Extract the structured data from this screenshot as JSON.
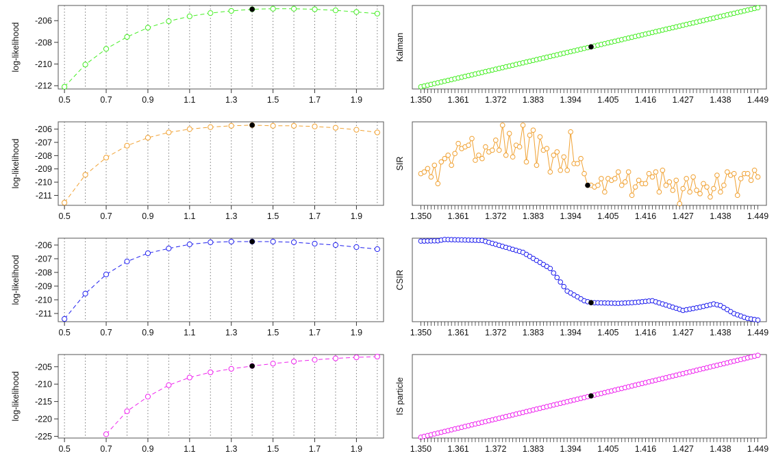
{
  "figure": {
    "colors": {
      "kalman": "#44ee22",
      "sir": "#f0a030",
      "csir": "#1c1cee",
      "is": "#ee22ee",
      "highlight": "#000000",
      "box": "#555555",
      "grid": "#777777"
    },
    "grid": "dotted vertical lines at x ticks in left panels"
  },
  "chart_data": [
    {
      "type": "line",
      "panel": "left-1",
      "series_name": "",
      "color_key": "kalman",
      "ylabel": "log-likelihood",
      "x": [
        0.5,
        0.6,
        0.7,
        0.8,
        0.9,
        1.0,
        1.1,
        1.2,
        1.3,
        1.4,
        1.5,
        1.6,
        1.7,
        1.8,
        1.9,
        2.0
      ],
      "y": [
        -212.1,
        -210.05,
        -208.6,
        -207.5,
        -206.65,
        -206.05,
        -205.6,
        -205.3,
        -205.1,
        -204.95,
        -204.9,
        -204.9,
        -204.95,
        -205.05,
        -205.2,
        -205.35
      ],
      "highlight": {
        "x": 1.4,
        "y": -204.95
      },
      "xlim": [
        0.47,
        2.03
      ],
      "ylim": [
        -212.3,
        -204.6
      ],
      "yticks": [
        -212,
        -210,
        -208,
        -206
      ],
      "xticks": [
        0.5,
        0.7,
        0.9,
        1.1,
        1.3,
        1.5,
        1.7,
        1.9
      ],
      "xtick_labels": [
        "0.5",
        "0.7",
        "0.9",
        "1.1",
        "1.3",
        "1.5",
        "1.7",
        "1.9"
      ],
      "ytick_labels": [
        "-212",
        "-210",
        "-208",
        "-206"
      ]
    },
    {
      "type": "line",
      "panel": "right-1",
      "series_name": "Kalman",
      "color_key": "kalman",
      "ylabel": "Kalman",
      "gen": "linear",
      "x_start": 1.35,
      "x_end": 1.449,
      "n": 100,
      "y_start": -212.1,
      "y_end": -204.9,
      "highlight_index": 50,
      "xlim": [
        1.3475,
        1.4515
      ],
      "ylim": [
        -212.3,
        -204.7
      ],
      "xticks": [
        1.35,
        1.361,
        1.372,
        1.383,
        1.394,
        1.405,
        1.416,
        1.427,
        1.438,
        1.449
      ],
      "xtick_labels": [
        "1.350",
        "1.361",
        "1.372",
        "1.383",
        "1.394",
        "1.405",
        "1.416",
        "1.427",
        "1.438",
        "1.449"
      ]
    },
    {
      "type": "line",
      "panel": "left-2",
      "series_name": "",
      "color_key": "sir",
      "ylabel": "log-likelihood",
      "x": [
        0.5,
        0.6,
        0.7,
        0.8,
        0.9,
        1.0,
        1.1,
        1.2,
        1.3,
        1.4,
        1.5,
        1.6,
        1.7,
        1.8,
        1.9,
        2.0
      ],
      "y": [
        -211.55,
        -209.45,
        -208.15,
        -207.25,
        -206.65,
        -206.25,
        -206.0,
        -205.85,
        -205.75,
        -205.7,
        -205.75,
        -205.75,
        -205.8,
        -205.9,
        -206.05,
        -206.25
      ],
      "highlight": {
        "x": 1.4,
        "y": -205.7
      },
      "xlim": [
        0.47,
        2.03
      ],
      "ylim": [
        -211.75,
        -205.45
      ],
      "yticks": [
        -211,
        -210,
        -209,
        -208,
        -207,
        -206
      ],
      "xticks": [
        0.5,
        0.7,
        0.9,
        1.1,
        1.3,
        1.5,
        1.7,
        1.9
      ],
      "xtick_labels": [
        "0.5",
        "0.7",
        "0.9",
        "1.1",
        "1.3",
        "1.5",
        "1.7",
        "1.9"
      ],
      "ytick_labels": [
        "-211",
        "-210",
        "-209",
        "-208",
        "-207",
        "-206"
      ]
    },
    {
      "type": "line",
      "panel": "right-2",
      "series_name": "SIR",
      "color_key": "sir",
      "ylabel": "SIR",
      "gen": "values",
      "x_start": 1.35,
      "x_end": 1.449,
      "n": 100,
      "y": [
        31,
        30,
        28,
        33,
        26,
        37,
        24,
        22,
        20,
        26,
        19,
        13,
        16,
        15,
        14,
        10,
        23,
        20,
        22,
        15,
        18,
        17,
        11,
        17,
        2,
        20,
        7,
        21,
        14,
        15,
        2,
        24,
        8,
        5,
        26,
        9,
        17,
        16,
        30,
        20,
        18,
        29,
        21,
        29,
        6,
        25,
        25,
        22,
        31,
        38,
        38,
        39,
        38,
        34,
        42,
        34,
        35,
        34,
        30,
        38,
        36,
        30,
        44,
        39,
        35,
        37,
        37,
        31,
        33,
        30,
        42,
        29,
        38,
        36,
        41,
        35,
        49,
        40,
        34,
        42,
        33,
        41,
        43,
        37,
        39,
        45,
        40,
        32,
        42,
        38,
        30,
        32,
        31,
        44,
        34,
        31,
        31,
        35,
        29,
        33
      ],
      "highlight_index": 49,
      "xlim": [
        1.3475,
        1.4515
      ],
      "ylim": [
        0,
        50
      ],
      "invert_y": true,
      "xticks": [
        1.35,
        1.361,
        1.372,
        1.383,
        1.394,
        1.405,
        1.416,
        1.427,
        1.438,
        1.449
      ],
      "xtick_labels": [
        "1.350",
        "1.361",
        "1.372",
        "1.383",
        "1.394",
        "1.405",
        "1.416",
        "1.427",
        "1.438",
        "1.449"
      ]
    },
    {
      "type": "line",
      "panel": "left-3",
      "series_name": "",
      "color_key": "csir",
      "ylabel": "log-likelihood",
      "x": [
        0.5,
        0.6,
        0.7,
        0.8,
        0.9,
        1.0,
        1.1,
        1.2,
        1.3,
        1.4,
        1.5,
        1.6,
        1.7,
        1.8,
        1.9,
        2.0
      ],
      "y": [
        -211.4,
        -209.55,
        -208.15,
        -207.2,
        -206.6,
        -206.25,
        -205.95,
        -205.8,
        -205.75,
        -205.75,
        -205.75,
        -205.8,
        -205.9,
        -206.0,
        -206.15,
        -206.3
      ],
      "highlight": {
        "x": 1.4,
        "y": -205.75
      },
      "xlim": [
        0.47,
        2.03
      ],
      "ylim": [
        -211.6,
        -205.5
      ],
      "yticks": [
        -211,
        -210,
        -209,
        -208,
        -207,
        -206
      ],
      "xticks": [
        0.5,
        0.7,
        0.9,
        1.1,
        1.3,
        1.5,
        1.7,
        1.9
      ],
      "xtick_labels": [
        "0.5",
        "0.7",
        "0.9",
        "1.1",
        "1.3",
        "1.5",
        "1.7",
        "1.9"
      ],
      "ytick_labels": [
        "-211",
        "-210",
        "-209",
        "-208",
        "-207",
        "-206"
      ]
    },
    {
      "type": "line",
      "panel": "right-3",
      "series_name": "CSIR",
      "color_key": "csir",
      "ylabel": "CSIR",
      "gen": "interp",
      "x_start": 1.35,
      "x_end": 1.449,
      "n": 100,
      "knots": [
        [
          0,
          0.5
        ],
        [
          5,
          0.4
        ],
        [
          7,
          0.0
        ],
        [
          10,
          0.1
        ],
        [
          18,
          0.3
        ],
        [
          22,
          1.5
        ],
        [
          30,
          4.0
        ],
        [
          38,
          9.0
        ],
        [
          43,
          16.0
        ],
        [
          48,
          19.0
        ],
        [
          50,
          19.6
        ],
        [
          58,
          19.8
        ],
        [
          62,
          19.6
        ],
        [
          68,
          19.0
        ],
        [
          71,
          20.0
        ],
        [
          74,
          21.0
        ],
        [
          77,
          22.0
        ],
        [
          82,
          21.0
        ],
        [
          86,
          20.0
        ],
        [
          88,
          20.5
        ],
        [
          92,
          23.0
        ],
        [
          96,
          24.5
        ],
        [
          99,
          25.0
        ]
      ],
      "highlight_index": 50,
      "xlim": [
        1.3475,
        1.4515
      ],
      "ylim": [
        -0.4,
        25.5
      ],
      "invert_y": true,
      "xticks": [
        1.35,
        1.361,
        1.372,
        1.383,
        1.394,
        1.405,
        1.416,
        1.427,
        1.438,
        1.449
      ],
      "xtick_labels": [
        "1.350",
        "1.361",
        "1.372",
        "1.383",
        "1.394",
        "1.405",
        "1.416",
        "1.427",
        "1.438",
        "1.449"
      ]
    },
    {
      "type": "line",
      "panel": "left-4",
      "series_name": "",
      "color_key": "is",
      "ylabel": "log-likelihood",
      "x": [
        0.7,
        0.8,
        0.9,
        1.0,
        1.1,
        1.2,
        1.3,
        1.4,
        1.5,
        1.6,
        1.7,
        1.8,
        1.9,
        2.0
      ],
      "y": [
        -224.4,
        -217.8,
        -213.6,
        -210.3,
        -208.1,
        -206.6,
        -205.6,
        -204.8,
        -204.1,
        -203.5,
        -203.0,
        -202.6,
        -202.3,
        -202.1
      ],
      "highlight": {
        "x": 1.4,
        "y": -204.8
      },
      "xlim": [
        0.47,
        2.03
      ],
      "ylim": [
        -225.5,
        -201.5
      ],
      "yticks": [
        -225,
        -220,
        -215,
        -210,
        -205
      ],
      "xticks": [
        0.5,
        0.7,
        0.9,
        1.1,
        1.3,
        1.5,
        1.7,
        1.9
      ],
      "xtick_labels": [
        "0.5",
        "0.7",
        "0.9",
        "1.1",
        "1.3",
        "1.5",
        "1.7",
        "1.9"
      ],
      "ytick_labels": [
        "-225",
        "-220",
        "-215",
        "-210",
        "-205"
      ]
    },
    {
      "type": "line",
      "panel": "right-4",
      "series_name": "IS particle",
      "color_key": "is",
      "ylabel": "IS particle",
      "gen": "linear",
      "x_start": 1.35,
      "x_end": 1.449,
      "n": 100,
      "y_start": 0,
      "y_end": 100,
      "highlight_index": 50,
      "xlim": [
        1.3475,
        1.4515
      ],
      "ylim": [
        -1,
        101
      ],
      "xticks": [
        1.35,
        1.361,
        1.372,
        1.383,
        1.394,
        1.405,
        1.416,
        1.427,
        1.438,
        1.449
      ],
      "xtick_labels": [
        "1.350",
        "1.361",
        "1.372",
        "1.383",
        "1.394",
        "1.405",
        "1.416",
        "1.427",
        "1.438",
        "1.449"
      ]
    }
  ]
}
